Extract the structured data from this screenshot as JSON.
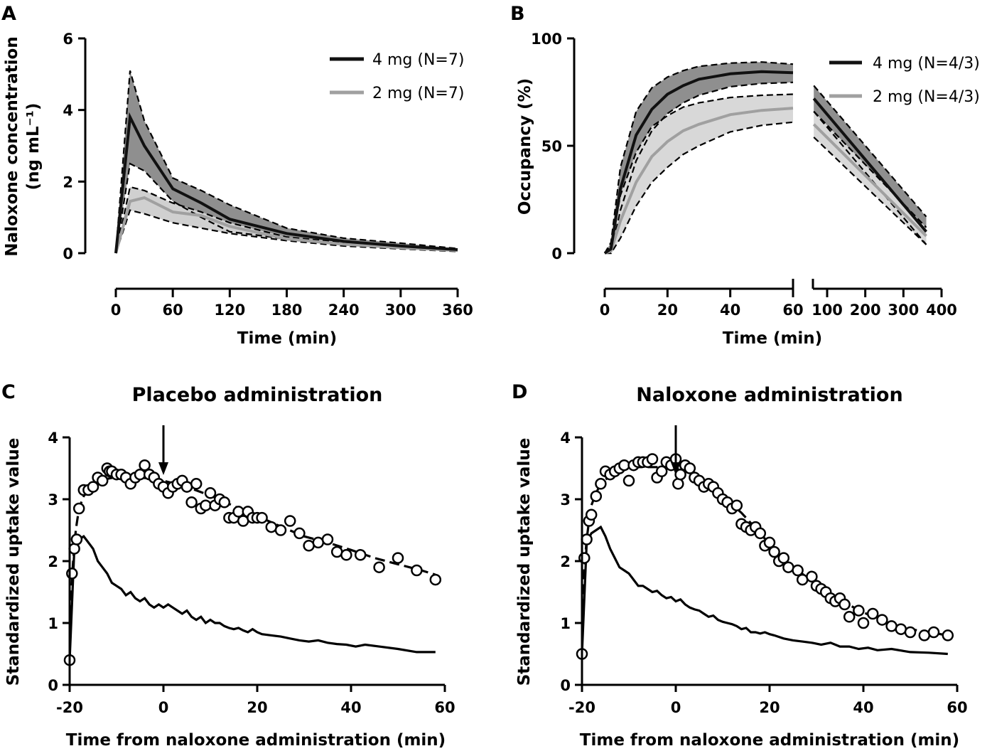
{
  "chart_data": [
    {
      "panel": "A",
      "type": "line",
      "title": "",
      "xlabel": "Time (min)",
      "ylabel": "Naloxone concentration",
      "ylabel_line2": "(ng mL⁻¹)",
      "xlim": [
        0,
        360
      ],
      "ylim": [
        0,
        6
      ],
      "xticks": [
        "0",
        "60",
        "120",
        "180",
        "240",
        "300",
        "360"
      ],
      "yticks": [
        "0",
        "2",
        "4",
        "6"
      ],
      "legend_position": "top-right",
      "series": [
        {
          "name": "4 mg (N=7)",
          "color": "#111111",
          "band_color": "#8f8f8f",
          "x": [
            0,
            15,
            30,
            60,
            90,
            120,
            180,
            240,
            300,
            360
          ],
          "mean": [
            0,
            3.8,
            3.0,
            1.8,
            1.4,
            0.95,
            0.55,
            0.33,
            0.2,
            0.1
          ],
          "upper": [
            0,
            5.1,
            3.7,
            2.1,
            1.75,
            1.35,
            0.7,
            0.42,
            0.28,
            0.13
          ],
          "lower": [
            0,
            2.5,
            2.3,
            1.45,
            1.0,
            0.6,
            0.4,
            0.25,
            0.15,
            0.06
          ]
        },
        {
          "name": "2 mg (N=7)",
          "color": "#a0a0a0",
          "band_color": "#d0d0d0",
          "x": [
            0,
            15,
            30,
            60,
            90,
            120,
            180,
            240,
            300,
            360
          ],
          "mean": [
            0,
            1.45,
            1.55,
            1.15,
            1.05,
            0.75,
            0.4,
            0.25,
            0.15,
            0.08
          ],
          "upper": [
            0,
            1.85,
            1.75,
            1.4,
            1.15,
            0.85,
            0.45,
            0.3,
            0.18,
            0.1
          ],
          "lower": [
            0,
            1.2,
            1.1,
            0.85,
            0.7,
            0.55,
            0.35,
            0.2,
            0.12,
            0.05
          ]
        }
      ]
    },
    {
      "panel": "B",
      "type": "line",
      "title": "",
      "xlabel": "Time (min)",
      "ylabel": "Occupancy (%)",
      "xlim_segment1": [
        0,
        60
      ],
      "xlim_segment2": [
        60,
        400
      ],
      "xticks_segment1": [
        "0",
        "20",
        "40",
        "60"
      ],
      "xticks_segment2": [
        "100",
        "200",
        "300",
        "400"
      ],
      "ylim": [
        0,
        100
      ],
      "yticks": [
        "0",
        "50",
        "100"
      ],
      "legend_position": "top-right",
      "series": [
        {
          "name": "4 mg (N=4/3)",
          "color": "#111111",
          "band_color": "#8f8f8f",
          "x": [
            0,
            2,
            5,
            10,
            15,
            20,
            25,
            30,
            40,
            50,
            60
          ],
          "mean": [
            0,
            2,
            30,
            55,
            67,
            74,
            78,
            81,
            83.5,
            84.5,
            84
          ],
          "upper": [
            0,
            5,
            40,
            66,
            77,
            82,
            85,
            87,
            88.5,
            89,
            88
          ],
          "lower": [
            0,
            0,
            20,
            43,
            57,
            65,
            70,
            73.5,
            77.5,
            79,
            79.5
          ],
          "x2": [
            65,
            360
          ],
          "mean2": [
            72,
            10
          ],
          "upper2": [
            78,
            17
          ],
          "lower2": [
            66,
            4
          ]
        },
        {
          "name": "2 mg (N=4/3)",
          "color": "#a0a0a0",
          "band_color": "#d8d8d8",
          "x": [
            0,
            2,
            5,
            10,
            15,
            20,
            25,
            30,
            40,
            50,
            60
          ],
          "mean": [
            0,
            1,
            15,
            33,
            45,
            52,
            57,
            60,
            64.5,
            66.5,
            67.5
          ],
          "upper": [
            0,
            3,
            27,
            47,
            59,
            64,
            68,
            70,
            72.5,
            73.5,
            74
          ],
          "lower": [
            0,
            0,
            7,
            22,
            33,
            40,
            46,
            50,
            56.5,
            59.5,
            61
          ],
          "x2": [
            65,
            360
          ],
          "mean2": [
            60,
            8
          ],
          "upper2": [
            66,
            12
          ],
          "lower2": [
            54,
            4
          ]
        }
      ]
    },
    {
      "panel": "C",
      "type": "scatter",
      "title": "Placebo administration",
      "xlabel": "Time from naloxone administration (min)",
      "ylabel": "Standardized uptake value",
      "xlim": [
        -20,
        60
      ],
      "ylim": [
        0,
        4
      ],
      "xticks": [
        "-20",
        "0",
        "20",
        "40",
        "60"
      ],
      "yticks": [
        "0",
        "1",
        "2",
        "3",
        "4"
      ],
      "arrow_at_x": 0,
      "observed": {
        "x": [
          -20,
          -19.5,
          -19,
          -18.5,
          -18,
          -17,
          -16,
          -15,
          -14,
          -13,
          -12,
          -11.5,
          -11,
          -10,
          -9,
          -8,
          -7,
          -6,
          -5,
          -4,
          -3,
          -2,
          -1,
          0,
          1,
          2,
          3,
          4,
          5,
          6,
          7,
          8,
          9,
          10,
          11,
          12,
          13,
          14,
          15,
          16,
          17,
          18,
          19,
          20,
          21,
          23,
          25,
          27,
          29,
          31,
          33,
          35,
          37,
          39,
          42,
          46,
          50,
          54,
          58
        ],
        "y": [
          0.4,
          1.8,
          2.2,
          2.35,
          2.85,
          3.15,
          3.15,
          3.2,
          3.35,
          3.3,
          3.5,
          3.45,
          3.45,
          3.4,
          3.4,
          3.35,
          3.25,
          3.35,
          3.4,
          3.55,
          3.4,
          3.35,
          3.25,
          3.2,
          3.1,
          3.2,
          3.25,
          3.3,
          3.2,
          2.95,
          3.25,
          2.85,
          2.9,
          3.1,
          2.9,
          3.0,
          2.95,
          2.7,
          2.7,
          2.8,
          2.65,
          2.8,
          2.7,
          2.7,
          2.7,
          2.55,
          2.5,
          2.65,
          2.45,
          2.25,
          2.3,
          2.35,
          2.15,
          2.1,
          2.1,
          1.9,
          2.05,
          1.85,
          1.7
        ]
      },
      "model_fit": {
        "x": [
          -20,
          -19.5,
          -19,
          -18.5,
          -18,
          -17,
          -16,
          -14,
          -12,
          -10,
          -8,
          -5,
          -2,
          0,
          5,
          10,
          15,
          20,
          25,
          30,
          35,
          40,
          45,
          50,
          55,
          58
        ],
        "y": [
          0.4,
          1.7,
          2.3,
          2.6,
          2.85,
          3.05,
          3.15,
          3.27,
          3.33,
          3.36,
          3.36,
          3.35,
          3.33,
          3.3,
          3.2,
          3.06,
          2.89,
          2.73,
          2.56,
          2.4,
          2.3,
          2.18,
          2.05,
          1.95,
          1.85,
          1.78
        ]
      },
      "reference": {
        "x": [
          -20,
          -19,
          -18,
          -17,
          -16,
          -15,
          -14,
          -13,
          -12,
          -11,
          -10,
          -9,
          -8,
          -7,
          -6,
          -5,
          -4,
          -3,
          -2,
          -1,
          0,
          1,
          2,
          3,
          4,
          5,
          6,
          7,
          8,
          9,
          10,
          11,
          12,
          13,
          14,
          15,
          16,
          17,
          18,
          19,
          20,
          21,
          23,
          25,
          27,
          29,
          31,
          33,
          35,
          37,
          39,
          41,
          43,
          46,
          50,
          54,
          58
        ],
        "y": [
          0.4,
          2.2,
          2.35,
          2.4,
          2.3,
          2.2,
          2.0,
          1.9,
          1.8,
          1.65,
          1.6,
          1.55,
          1.45,
          1.5,
          1.4,
          1.35,
          1.4,
          1.3,
          1.25,
          1.3,
          1.25,
          1.3,
          1.25,
          1.2,
          1.15,
          1.2,
          1.1,
          1.05,
          1.1,
          1.0,
          1.05,
          1.0,
          1.0,
          0.95,
          0.92,
          0.9,
          0.92,
          0.88,
          0.85,
          0.9,
          0.85,
          0.82,
          0.8,
          0.78,
          0.75,
          0.72,
          0.7,
          0.72,
          0.68,
          0.66,
          0.65,
          0.62,
          0.65,
          0.62,
          0.58,
          0.53,
          0.53
        ]
      }
    },
    {
      "panel": "D",
      "type": "scatter",
      "title": "Naloxone administration",
      "xlabel": "Time from naloxone administration (min)",
      "ylabel": "Standardized uptake value",
      "xlim": [
        -20,
        60
      ],
      "ylim": [
        0,
        4
      ],
      "xticks": [
        "-20",
        "0",
        "20",
        "40",
        "60"
      ],
      "yticks": [
        "0",
        "1",
        "2",
        "3",
        "4"
      ],
      "arrow_at_x": 0,
      "observed": {
        "x": [
          -20,
          -19.5,
          -19,
          -18.5,
          -18,
          -17,
          -16,
          -15,
          -14,
          -13,
          -12,
          -11,
          -10,
          -9,
          -8,
          -7,
          -6,
          -5,
          -4,
          -3,
          -2,
          -1,
          0,
          0.5,
          1,
          2,
          3,
          4,
          5,
          6,
          7,
          8,
          9,
          10,
          11,
          12,
          13,
          14,
          15,
          16,
          17,
          18,
          19,
          20,
          21,
          22,
          23,
          24,
          26,
          27,
          29,
          30,
          31,
          32,
          33,
          34,
          35,
          36,
          37,
          39,
          40,
          42,
          44,
          46,
          48,
          50,
          53,
          55,
          58
        ],
        "y": [
          0.5,
          2.05,
          2.35,
          2.65,
          2.75,
          3.05,
          3.25,
          3.45,
          3.4,
          3.45,
          3.5,
          3.55,
          3.3,
          3.55,
          3.6,
          3.6,
          3.6,
          3.65,
          3.35,
          3.45,
          3.6,
          3.55,
          3.65,
          3.25,
          3.4,
          3.55,
          3.5,
          3.35,
          3.3,
          3.2,
          3.25,
          3.2,
          3.1,
          3.0,
          2.95,
          2.85,
          2.9,
          2.6,
          2.55,
          2.5,
          2.55,
          2.45,
          2.25,
          2.3,
          2.15,
          2.0,
          2.05,
          1.9,
          1.85,
          1.7,
          1.75,
          1.6,
          1.55,
          1.5,
          1.4,
          1.35,
          1.4,
          1.3,
          1.1,
          1.2,
          1.0,
          1.15,
          1.05,
          0.95,
          0.9,
          0.85,
          0.8,
          0.85,
          0.8
        ]
      },
      "model_fit": {
        "x": [
          -20,
          -19.5,
          -19,
          -18.5,
          -18,
          -17,
          -16,
          -14,
          -12,
          -10,
          -8,
          -5,
          -2,
          0,
          3,
          6,
          10,
          14,
          18,
          22,
          26,
          30,
          34,
          38,
          42,
          46,
          50,
          54,
          58
        ],
        "y": [
          0.5,
          1.9,
          2.35,
          2.65,
          2.9,
          3.1,
          3.25,
          3.38,
          3.45,
          3.5,
          3.52,
          3.52,
          3.52,
          3.5,
          3.4,
          3.25,
          3.05,
          2.78,
          2.45,
          2.1,
          1.85,
          1.62,
          1.42,
          1.25,
          1.1,
          0.98,
          0.9,
          0.85,
          0.8
        ]
      },
      "reference": {
        "x": [
          -20,
          -19,
          -18,
          -17,
          -16,
          -15,
          -14,
          -13,
          -12,
          -11,
          -10,
          -9,
          -8,
          -7,
          -6,
          -5,
          -4,
          -3,
          -2,
          -1,
          0,
          1,
          2,
          3,
          4,
          5,
          6,
          7,
          8,
          9,
          10,
          11,
          12,
          13,
          14,
          15,
          16,
          17,
          18,
          19,
          20,
          21,
          23,
          25,
          27,
          29,
          31,
          33,
          35,
          37,
          39,
          41,
          43,
          46,
          50,
          54,
          58
        ],
        "y": [
          0.5,
          2.3,
          2.45,
          2.5,
          2.55,
          2.4,
          2.2,
          2.05,
          1.9,
          1.85,
          1.8,
          1.7,
          1.6,
          1.6,
          1.55,
          1.5,
          1.52,
          1.45,
          1.4,
          1.42,
          1.35,
          1.38,
          1.3,
          1.25,
          1.22,
          1.2,
          1.15,
          1.1,
          1.12,
          1.05,
          1.02,
          1.0,
          0.98,
          0.95,
          0.9,
          0.92,
          0.85,
          0.85,
          0.83,
          0.85,
          0.82,
          0.8,
          0.75,
          0.72,
          0.7,
          0.68,
          0.65,
          0.68,
          0.62,
          0.62,
          0.58,
          0.6,
          0.56,
          0.58,
          0.53,
          0.52,
          0.5
        ]
      }
    }
  ]
}
